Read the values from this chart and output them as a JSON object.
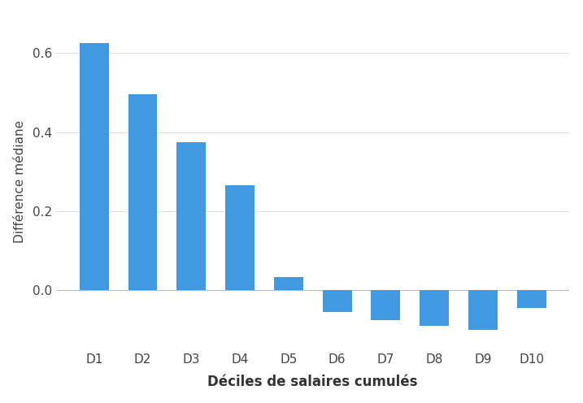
{
  "categories": [
    "D1",
    "D2",
    "D3",
    "D4",
    "D5",
    "D6",
    "D7",
    "D8",
    "D9",
    "D10"
  ],
  "values": [
    0.625,
    0.495,
    0.375,
    0.265,
    0.033,
    -0.055,
    -0.075,
    -0.09,
    -0.1,
    -0.045
  ],
  "bar_color": "#4199e1",
  "xlabel": "Déciles de salaires cumulés",
  "ylabel": "Différence médiane",
  "ylim": [
    -0.15,
    0.7
  ],
  "yticks": [
    0.0,
    0.2,
    0.4,
    0.6
  ],
  "background_color": "#ffffff",
  "plot_bg_color": "#ffffff",
  "grid_color": "#e0e0e0",
  "bar_width": 0.6,
  "xlabel_fontsize": 12,
  "ylabel_fontsize": 11,
  "tick_fontsize": 11,
  "xlabel_bold": true
}
